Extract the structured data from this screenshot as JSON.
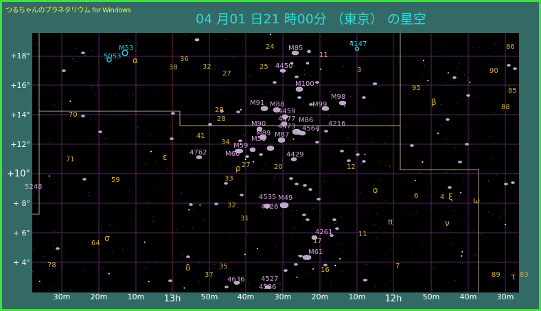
{
  "app_title": "つるちゃんのプラネタリウム for Windows",
  "sky_title": "04 月01 日21 時00分 （東京） の星空",
  "colors": {
    "frame": "#336a66",
    "border": "#40e040",
    "sky": "#000000",
    "grid": "#5a2466",
    "hour_grid": "#7a2030",
    "boundary": "#b0a890",
    "galaxy": "#d8a0e0",
    "cluster": "#30c8d8",
    "star_label": "#d8b030"
  },
  "dec_axis": [
    "+18°",
    "+16°",
    "+14°",
    "+12°",
    "+10°",
    "+ 8°",
    "+ 6°",
    "+ 4°"
  ],
  "ra_axis": [
    "30m",
    "20m",
    "10m",
    "13h",
    "50m",
    "40m",
    "30m",
    "20m",
    "10m",
    "12h",
    "50m",
    "40m",
    "30m"
  ],
  "deep_sky_labels": [
    "M85",
    "4450",
    "M100",
    "M98",
    "M99",
    "M91",
    "M88",
    "4459",
    "4477",
    "4473",
    "M90",
    "M89",
    "M87",
    "M86",
    "4564",
    "4216",
    "M58",
    "M59",
    "M60",
    "4762",
    "4429",
    "4535",
    "M49",
    "4526",
    "4261",
    "M61",
    "4636",
    "4527",
    "4536",
    "5248"
  ],
  "cluster_labels": [
    "M53",
    "5053",
    "4147"
  ],
  "star_number_labels": [
    "24",
    "11",
    "38",
    "36",
    "32",
    "25",
    "27",
    "3",
    "95",
    "90",
    "86",
    "85",
    "88",
    "29",
    "28",
    "70",
    "41",
    "34",
    "71",
    "27",
    "20",
    "12",
    "59",
    "33",
    "6",
    "4",
    "32",
    "31",
    "64",
    "11",
    "17",
    "35",
    "37",
    "16",
    "78",
    "7",
    "89",
    "83"
  ],
  "greek_labels": [
    "α",
    "β",
    "ε",
    "ρ",
    "σ",
    "δ",
    "ο",
    "ξ",
    "ω",
    "π",
    "ν",
    "τ"
  ]
}
